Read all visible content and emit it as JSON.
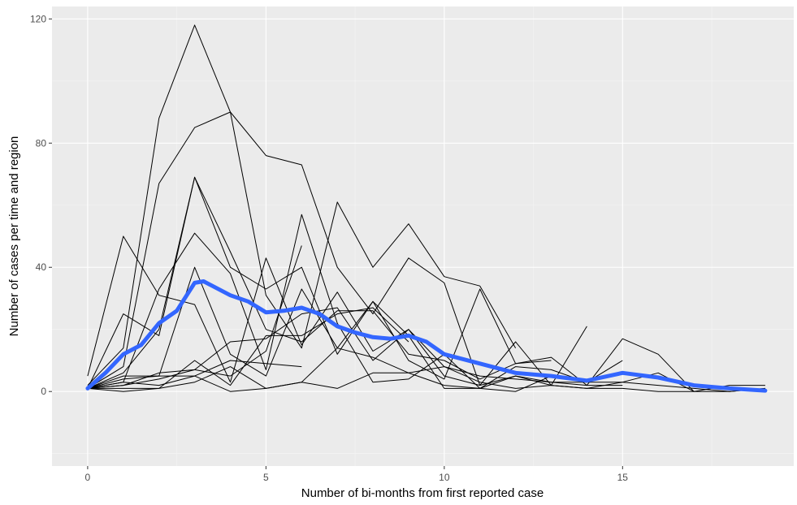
{
  "chart_data": {
    "type": "line",
    "title": "",
    "xlabel": "Number of bi-months from first reported case",
    "ylabel": "Number of cases per time and region",
    "xlim": [
      -1,
      19.8
    ],
    "ylim": [
      -24,
      124
    ],
    "x_ticks": [
      0,
      5,
      10,
      15
    ],
    "y_ticks": [
      0,
      40,
      80,
      120
    ],
    "grid": true,
    "legend": "none",
    "colors": {
      "panel_background": "#ebebeb",
      "grid_major": "#ffffff",
      "grid_minor": "#f5f5f5",
      "series_line": "#000000",
      "smooth_line": "#3366ff"
    },
    "series": [
      {
        "x": [
          0,
          1,
          2,
          3,
          4,
          5,
          6,
          7,
          8,
          9,
          10,
          11,
          12,
          13,
          14,
          15
        ],
        "values": [
          2,
          14,
          88,
          118,
          90,
          76,
          73,
          40,
          25,
          43,
          35,
          2,
          5,
          3,
          2,
          2
        ]
      },
      {
        "x": [
          0,
          1,
          2,
          3,
          4,
          5,
          6,
          7,
          8,
          9,
          10,
          11,
          12
        ],
        "values": [
          1,
          8,
          67,
          85,
          90,
          31,
          14,
          61,
          40,
          54,
          37,
          34,
          14
        ]
      },
      {
        "x": [
          0,
          1,
          2,
          3,
          4,
          5,
          6,
          7,
          8,
          9,
          10,
          11,
          12,
          13,
          14
        ],
        "values": [
          5,
          50,
          31,
          28,
          3,
          43,
          15,
          32,
          13,
          20,
          5,
          2,
          16,
          2,
          21
        ]
      },
      {
        "x": [
          0,
          1,
          2,
          3,
          4,
          5,
          6,
          7,
          8,
          9,
          10,
          11,
          12,
          13,
          14,
          15,
          16,
          17
        ],
        "values": [
          1,
          25,
          18,
          69,
          40,
          33,
          40,
          12,
          29,
          10,
          4,
          33,
          9,
          11,
          2,
          17,
          12,
          0
        ]
      },
      {
        "x": [
          0,
          1,
          2,
          3,
          4,
          5,
          6,
          7,
          8,
          9,
          10,
          11,
          12,
          13
        ],
        "values": [
          1,
          6,
          20,
          69,
          45,
          20,
          16,
          26,
          26,
          12,
          10,
          4,
          9,
          10
        ]
      },
      {
        "x": [
          0,
          1,
          2,
          3,
          4,
          5,
          6,
          7,
          8,
          9,
          10,
          11,
          12,
          13,
          14,
          15
        ],
        "values": [
          1,
          3,
          33,
          51,
          38,
          7,
          57,
          22,
          3,
          4,
          12,
          1,
          8,
          7,
          3,
          10
        ]
      },
      {
        "x": [
          0,
          1,
          2,
          3,
          4,
          5,
          6,
          7,
          8,
          9,
          10,
          11,
          12,
          13,
          14,
          15,
          16,
          17,
          18,
          19
        ],
        "values": [
          1,
          4,
          5,
          40,
          12,
          5,
          33,
          14,
          11,
          6,
          2,
          1,
          5,
          2,
          1,
          3,
          6,
          0,
          2,
          2
        ]
      },
      {
        "x": [
          0,
          1,
          2,
          3,
          4,
          5,
          6
        ],
        "values": [
          1,
          2,
          4,
          7,
          5,
          13,
          47
        ]
      },
      {
        "x": [
          0,
          1,
          2,
          3,
          4,
          5,
          6,
          7,
          8,
          9
        ],
        "values": [
          1,
          1,
          1,
          10,
          2,
          18,
          18,
          25,
          27,
          16
        ]
      },
      {
        "x": [
          0,
          1,
          2,
          3,
          4,
          5,
          6,
          7,
          8,
          9,
          10,
          11,
          12,
          13,
          14,
          15,
          16,
          17,
          18,
          19
        ],
        "values": [
          1,
          0,
          1,
          3,
          8,
          1,
          3,
          1,
          6,
          6,
          8,
          5,
          4,
          3,
          3,
          3,
          2,
          1,
          0,
          1
        ]
      },
      {
        "x": [
          0,
          1,
          2,
          3,
          4,
          5,
          6,
          7,
          8,
          9,
          10,
          11,
          12,
          13
        ],
        "values": [
          1,
          3,
          2,
          5,
          0,
          1,
          3,
          14,
          29,
          18,
          1,
          1,
          0,
          5
        ]
      },
      {
        "x": [
          0,
          1,
          2,
          3,
          4,
          5,
          6,
          7,
          8,
          9,
          10,
          11,
          12,
          13,
          14,
          15,
          16,
          17,
          18,
          19
        ],
        "values": [
          1,
          2,
          6,
          7,
          16,
          17,
          25,
          27,
          10,
          20,
          8,
          3,
          1,
          2,
          1,
          1,
          0,
          0,
          0,
          1
        ]
      },
      {
        "x": [
          0,
          1,
          2,
          3,
          4,
          5,
          6
        ],
        "values": [
          1,
          5,
          5,
          5,
          10,
          9,
          8
        ]
      }
    ],
    "smooth": {
      "x": [
        0,
        0.5,
        1,
        1.5,
        2,
        2.5,
        3,
        3.25,
        3.5,
        4,
        4.5,
        5,
        5.5,
        6,
        6.5,
        7,
        7.5,
        8,
        8.5,
        9,
        9.5,
        10,
        11,
        12,
        13,
        14,
        15,
        16,
        17,
        18,
        19
      ],
      "values": [
        1,
        6,
        12,
        15,
        22,
        26,
        35,
        35.5,
        34,
        31,
        29,
        25.5,
        26,
        27,
        25,
        21,
        19,
        17.5,
        17,
        18,
        16,
        12,
        9,
        6,
        5,
        3.5,
        6,
        4.5,
        2,
        1,
        0.3
      ]
    }
  }
}
